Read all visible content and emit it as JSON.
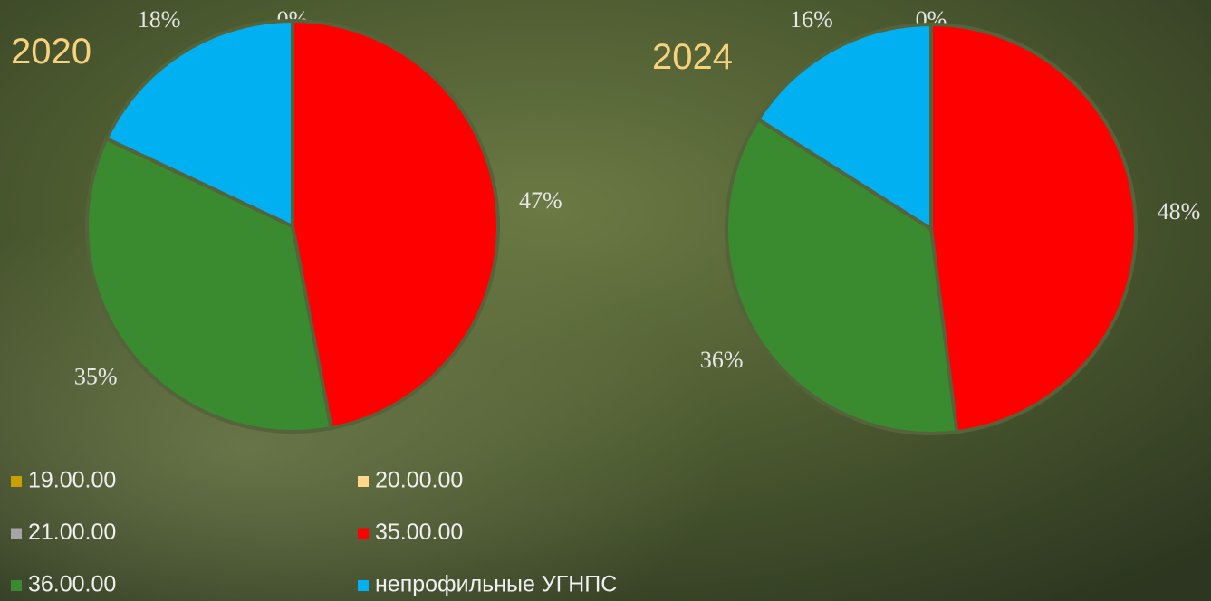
{
  "chart_data": [
    {
      "type": "pie",
      "title": "2020",
      "categories": [
        "19.00.00",
        "20.00.00",
        "21.00.00",
        "35.00.00",
        "36.00.00",
        "непрофильные УГНПС"
      ],
      "values": [
        0,
        0,
        0,
        47,
        35,
        18
      ],
      "value_labels": [
        "0%",
        null,
        null,
        "47%",
        "35%",
        "18%"
      ],
      "colors": [
        "#c9a000",
        "#ffd88c",
        "#a5a5a5",
        "#ff0000",
        "#3a8a30",
        "#00b0f0"
      ]
    },
    {
      "type": "pie",
      "title": "2024",
      "categories": [
        "19.00.00",
        "20.00.00",
        "21.00.00",
        "35.00.00",
        "36.00.00",
        "непрофильные УГНПС"
      ],
      "values": [
        0,
        0,
        0,
        48,
        36,
        16
      ],
      "value_labels": [
        "0%",
        null,
        null,
        "48%",
        "36%",
        "16%"
      ],
      "colors": [
        "#c9a000",
        "#ffd88c",
        "#a5a5a5",
        "#ff0000",
        "#3a8a30",
        "#00b0f0"
      ]
    }
  ]
}
